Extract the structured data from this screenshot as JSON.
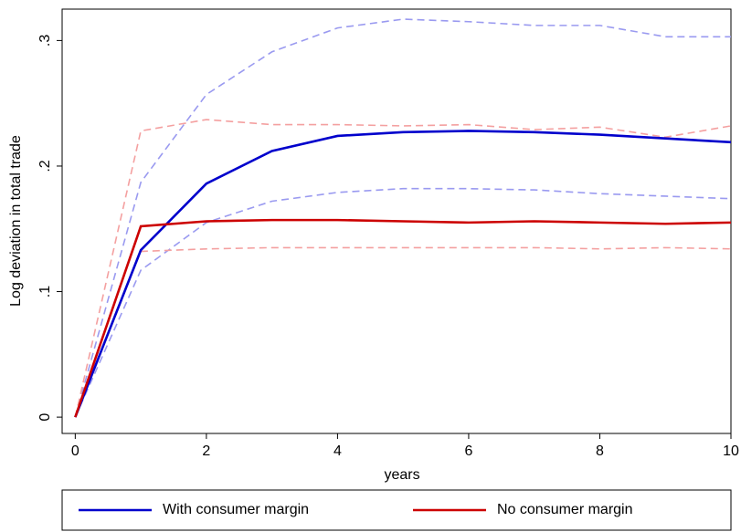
{
  "chart_data": {
    "type": "line",
    "x_label": "years",
    "y_label": "Log deviation in total trade",
    "x": [
      0,
      1,
      2,
      3,
      4,
      5,
      6,
      7,
      8,
      9,
      10
    ],
    "series": [
      {
        "name": "With consumer margin",
        "color": "#0000cc",
        "band_color": "#9a9af0",
        "values": [
          0,
          0.133,
          0.186,
          0.212,
          0.224,
          0.227,
          0.228,
          0.227,
          0.225,
          0.222,
          0.219
        ],
        "upper": [
          0,
          0.187,
          0.257,
          0.291,
          0.31,
          0.317,
          0.315,
          0.312,
          0.312,
          0.303,
          0.303
        ],
        "lower": [
          0,
          0.117,
          0.155,
          0.172,
          0.179,
          0.182,
          0.182,
          0.181,
          0.178,
          0.176,
          0.174
        ]
      },
      {
        "name": "No consumer margin",
        "color": "#cc0000",
        "band_color": "#f4a0a0",
        "values": [
          0,
          0.152,
          0.156,
          0.157,
          0.157,
          0.156,
          0.155,
          0.156,
          0.155,
          0.154,
          0.155
        ],
        "upper": [
          0,
          0.228,
          0.237,
          0.233,
          0.233,
          0.232,
          0.233,
          0.229,
          0.231,
          0.223,
          0.232
        ],
        "lower": [
          0,
          0.132,
          0.134,
          0.135,
          0.135,
          0.135,
          0.135,
          0.135,
          0.134,
          0.135,
          0.134
        ]
      }
    ],
    "xlim": [
      -0.2,
      10
    ],
    "xticks": [
      0,
      2,
      4,
      6,
      8,
      10
    ],
    "ylim": [
      -0.013,
      0.325
    ],
    "yticks": [
      0,
      {
        "value": 0.1,
        "label": ".1"
      },
      {
        "value": 0.2,
        "label": ".2"
      },
      {
        "value": 0.3,
        "label": ".3"
      }
    ],
    "legend": "bottom"
  }
}
